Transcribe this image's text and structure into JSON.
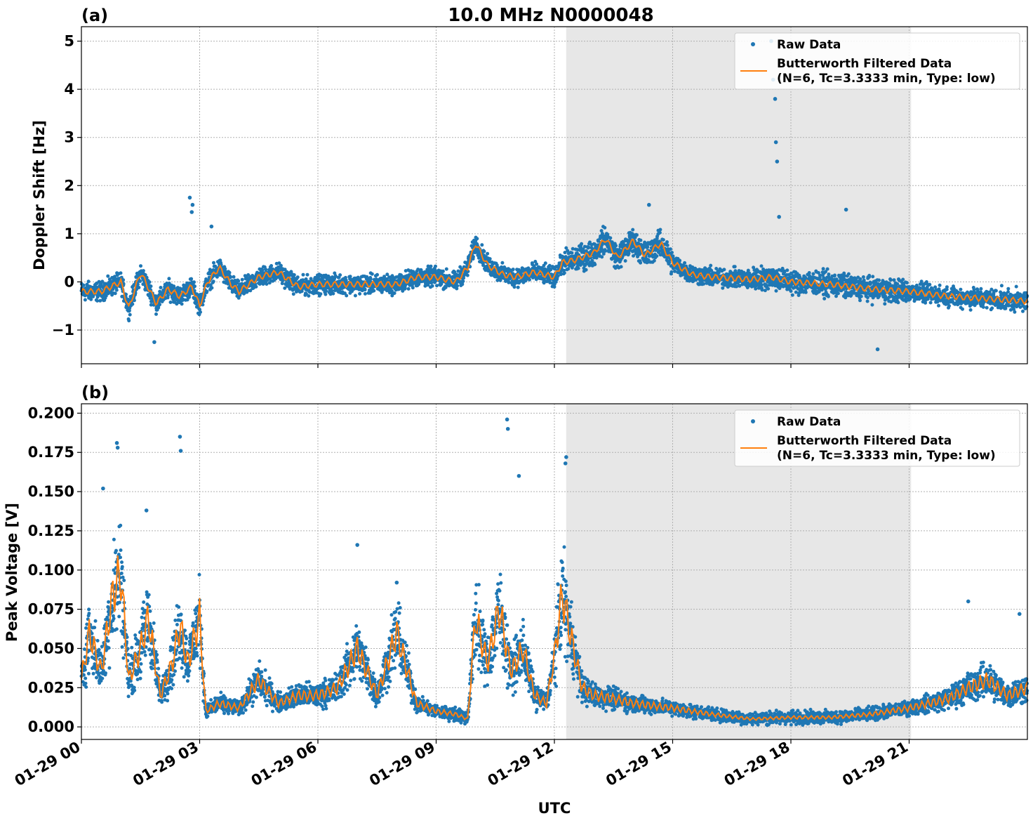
{
  "figure": {
    "title": "10.0 MHz N0000048",
    "xlabel": "UTC",
    "x_tick_labels": [
      "01-29 00",
      "01-29 03",
      "01-29 06",
      "01-29 09",
      "01-29 12",
      "01-29 15",
      "01-29 18",
      "01-29 21"
    ],
    "colors": {
      "raw": "#1f77b4",
      "filtered": "#ff7f0e",
      "shade": "#d0d0d0"
    }
  },
  "legend": {
    "raw_label": "Raw Data",
    "filtered_line1": "Butterworth Filtered Data",
    "filtered_line2": "(N=6, Tc=3.3333 min, Type: low)"
  },
  "chart_data": [
    {
      "type": "scatter",
      "panel_label": "(a)",
      "title": "10.0 MHz N0000048",
      "xlabel": "UTC",
      "ylabel": "Doppler Shift [Hz]",
      "xlim": [
        0,
        24
      ],
      "ylim": [
        -1.7,
        5.3
      ],
      "x_units": "hours UTC on 01-29",
      "y_ticks": [
        -1,
        0,
        1,
        2,
        3,
        4,
        5
      ],
      "shaded_region": [
        12.3,
        21.05
      ],
      "grid": true,
      "legend_position": "upper right",
      "series": [
        {
          "name": "Butterworth Filtered Data (N=6, Tc=3.3333 min, Type: low)",
          "kind": "line",
          "x": [
            0,
            0.5,
            1.0,
            1.2,
            1.5,
            1.9,
            2.2,
            2.5,
            2.8,
            3.0,
            3.2,
            3.5,
            3.8,
            4.0,
            4.5,
            5.0,
            5.5,
            6.0,
            7.0,
            8.0,
            8.5,
            9.0,
            9.5,
            9.8,
            10.0,
            10.3,
            10.7,
            11.0,
            11.5,
            12.0,
            12.2,
            12.5,
            13.0,
            13.3,
            13.6,
            14.0,
            14.3,
            14.7,
            15.0,
            15.5,
            16.0,
            17.0,
            17.5,
            18.0,
            19.0,
            20.0,
            21.0,
            22.0,
            23.0,
            24.0
          ],
          "y": [
            -0.2,
            -0.2,
            0.0,
            -0.55,
            0.2,
            -0.45,
            -0.15,
            -0.3,
            -0.1,
            -0.5,
            0.0,
            0.3,
            -0.05,
            -0.2,
            0.1,
            0.2,
            -0.1,
            -0.05,
            -0.05,
            -0.05,
            0.1,
            0.1,
            0.0,
            0.3,
            0.8,
            0.35,
            0.15,
            0.1,
            0.2,
            0.1,
            0.4,
            0.45,
            0.6,
            0.9,
            0.5,
            0.85,
            0.55,
            0.8,
            0.4,
            0.15,
            0.1,
            0.05,
            0.1,
            0.0,
            -0.05,
            -0.15,
            -0.2,
            -0.3,
            -0.35,
            -0.4
          ]
        },
        {
          "name": "Raw Data",
          "kind": "scatter",
          "x": [
            2.75,
            2.8,
            2.82,
            17.5,
            17.55,
            17.6,
            17.62,
            17.65,
            17.7,
            19.4,
            14.4,
            3.3,
            1.85,
            20.2
          ],
          "y": [
            1.75,
            1.45,
            1.6,
            5.0,
            4.2,
            3.8,
            2.9,
            2.5,
            1.35,
            1.5,
            1.6,
            1.15,
            -1.25,
            -1.4
          ]
        }
      ]
    },
    {
      "type": "scatter",
      "panel_label": "(b)",
      "xlabel": "UTC",
      "ylabel": "Peak Voltage [V]",
      "xlim": [
        0,
        24
      ],
      "ylim": [
        -0.008,
        0.206
      ],
      "x_units": "hours UTC on 01-29",
      "y_ticks": [
        0.0,
        0.025,
        0.05,
        0.075,
        0.1,
        0.125,
        0.15,
        0.175,
        0.2
      ],
      "y_tick_labels": [
        "0.000",
        "0.025",
        "0.050",
        "0.075",
        "0.100",
        "0.125",
        "0.150",
        "0.175",
        "0.200"
      ],
      "shaded_region": [
        12.3,
        21.05
      ],
      "grid": true,
      "legend_position": "upper right",
      "series": [
        {
          "name": "Butterworth Filtered Data (N=6, Tc=3.3333 min, Type: low)",
          "kind": "line",
          "x": [
            0,
            0.2,
            0.5,
            0.8,
            1.0,
            1.2,
            1.5,
            1.7,
            2.0,
            2.3,
            2.5,
            2.7,
            3.0,
            3.15,
            3.5,
            4.0,
            4.5,
            5.0,
            5.5,
            6.0,
            6.5,
            7.0,
            7.5,
            8.0,
            8.5,
            9.0,
            9.5,
            9.8,
            10.0,
            10.3,
            10.6,
            10.9,
            11.2,
            11.5,
            11.8,
            12.0,
            12.2,
            12.4,
            12.7,
            13.0,
            13.5,
            14.0,
            15.0,
            16.0,
            17.0,
            18.0,
            19.0,
            20.0,
            21.0,
            22.0,
            22.5,
            23.0,
            23.5,
            24.0
          ],
          "y": [
            0.03,
            0.06,
            0.035,
            0.085,
            0.098,
            0.03,
            0.05,
            0.07,
            0.02,
            0.04,
            0.065,
            0.04,
            0.07,
            0.01,
            0.015,
            0.012,
            0.03,
            0.015,
            0.02,
            0.02,
            0.025,
            0.05,
            0.02,
            0.06,
            0.015,
            0.01,
            0.008,
            0.005,
            0.07,
            0.04,
            0.076,
            0.035,
            0.05,
            0.02,
            0.015,
            0.045,
            0.085,
            0.06,
            0.025,
            0.02,
            0.018,
            0.015,
            0.012,
            0.008,
            0.005,
            0.006,
            0.006,
            0.008,
            0.012,
            0.018,
            0.025,
            0.03,
            0.02,
            0.025
          ]
        },
        {
          "name": "Raw Data",
          "kind": "scatter",
          "x": [
            0.9,
            0.92,
            2.5,
            2.52,
            10.8,
            10.82,
            11.1,
            12.3,
            12.28,
            0.55,
            1.65,
            7.0,
            8.0,
            22.5,
            23.8
          ],
          "y": [
            0.181,
            0.178,
            0.185,
            0.176,
            0.196,
            0.19,
            0.16,
            0.172,
            0.168,
            0.152,
            0.138,
            0.116,
            0.092,
            0.08,
            0.072
          ]
        }
      ]
    }
  ]
}
